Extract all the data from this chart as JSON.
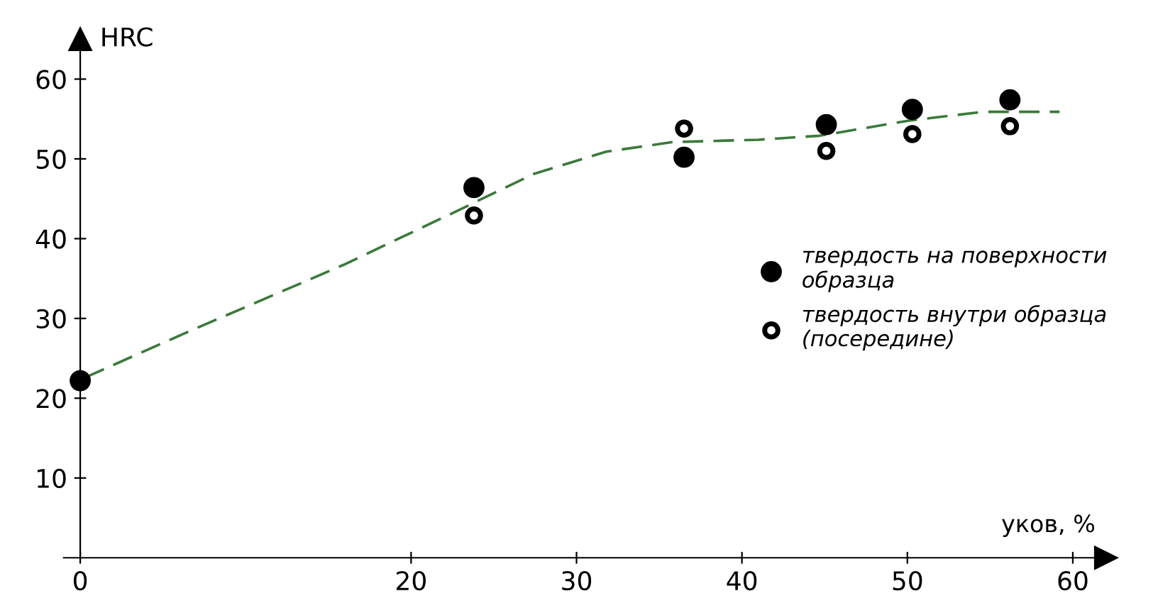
{
  "chart_data": {
    "type": "scatter",
    "xlabel": "уков, %",
    "ylabel": "HRC",
    "marker": "circle",
    "legend": "right",
    "grid": false,
    "xlim": [
      -1,
      62
    ],
    "ylim": [
      0,
      65
    ],
    "xticks": [
      0,
      20,
      30,
      40,
      50,
      60
    ],
    "yticks": [
      10,
      20,
      30,
      40,
      50,
      60
    ],
    "series": [
      {
        "name": "твердость на поверхности образца",
        "color": "#000000",
        "x": [
          0,
          23.8,
          36.5,
          45.1,
          50.3,
          56.2
        ],
        "values": [
          22.2,
          46.4,
          50.2,
          54.3,
          56.2,
          57.4
        ]
      },
      {
        "name": "твердость внутри образца (посередине)",
        "color": "#000000",
        "x": [
          23.8,
          36.5,
          45.1,
          50.3,
          56.2
        ],
        "values": [
          42.9,
          53.8,
          51.0,
          53.1,
          54.1
        ]
      },
      {
        "type": "line",
        "color": "#3a7a3a",
        "line_style": "dashed",
        "marker": "none",
        "x": [
          0.3,
          6.6,
          15.9,
          22.6,
          27.4,
          31.8,
          35.8,
          41.0,
          44.7,
          50.1,
          54.6,
          59.2
        ],
        "values": [
          22.6,
          28.4,
          36.7,
          43.3,
          48.1,
          50.9,
          52.1,
          52.4,
          52.9,
          54.8,
          55.9,
          55.9
        ]
      }
    ]
  }
}
